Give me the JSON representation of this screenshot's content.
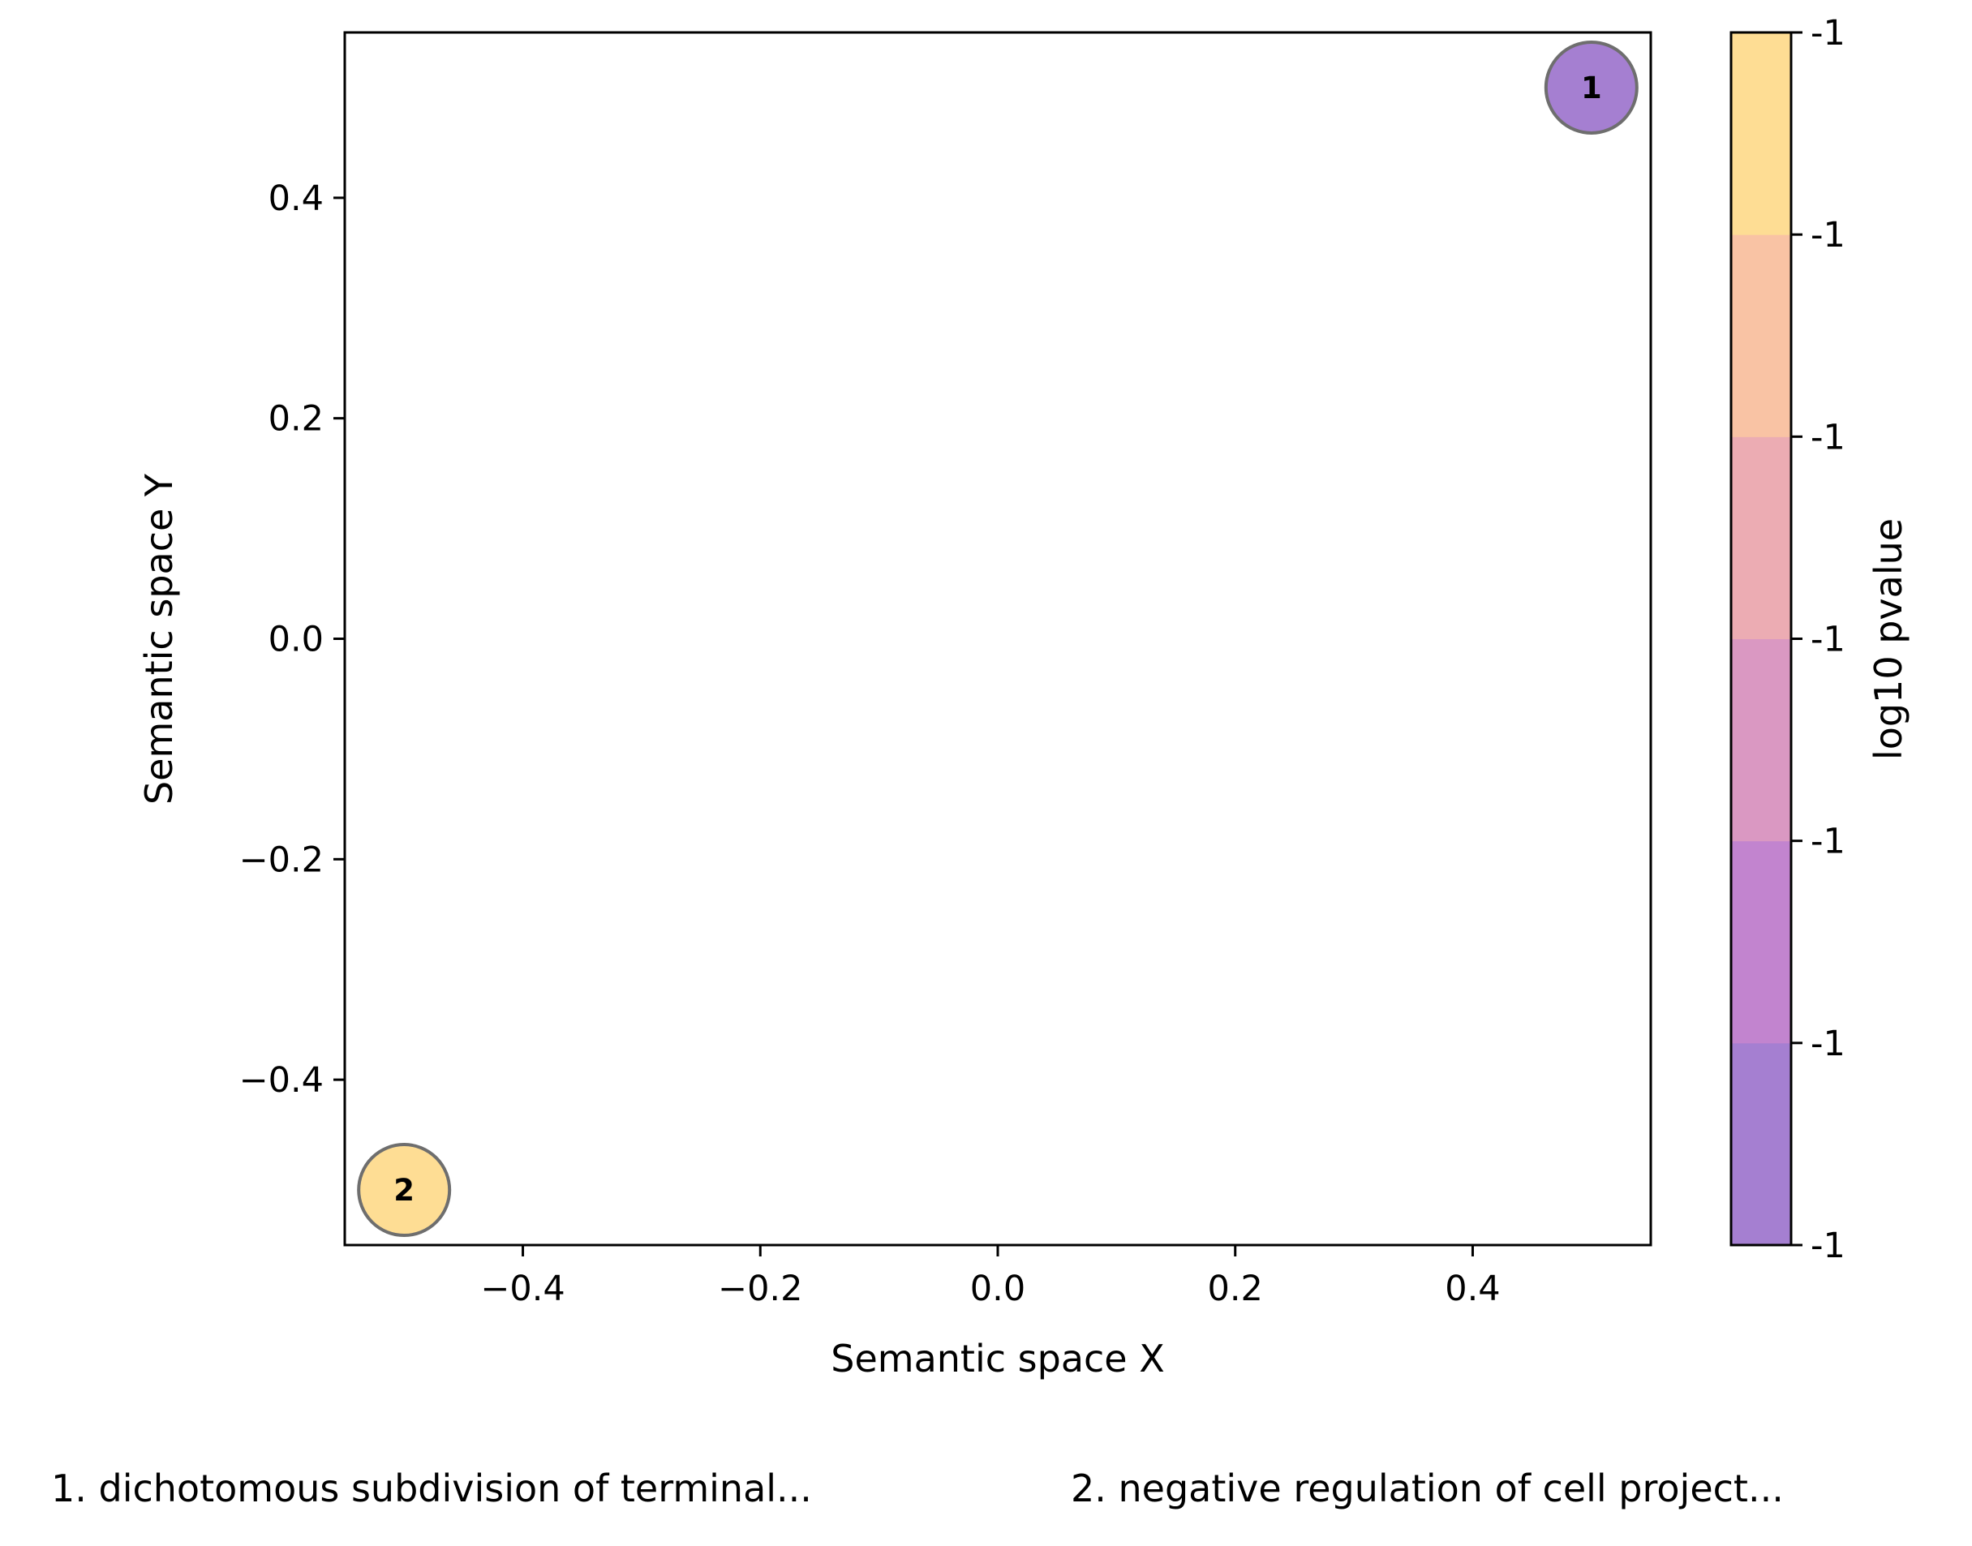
{
  "chart_data": {
    "type": "scatter",
    "title": "",
    "xlabel": "Semantic space X",
    "ylabel": "Semantic space Y",
    "xlim": [
      -0.55,
      0.55
    ],
    "ylim": [
      -0.55,
      0.55
    ],
    "xticks": [
      -0.4,
      -0.2,
      0.0,
      0.2,
      0.4
    ],
    "xtick_labels": [
      "−0.4",
      "−0.2",
      "0.0",
      "0.2",
      "0.4"
    ],
    "yticks": [
      -0.4,
      -0.2,
      0.0,
      0.2,
      0.4
    ],
    "ytick_labels": [
      "−0.4",
      "−0.2",
      "0.0",
      "0.2",
      "0.4"
    ],
    "grid": false,
    "points": [
      {
        "label": "1",
        "x": 0.5,
        "y": 0.5,
        "color": "#a57fd1"
      },
      {
        "label": "2",
        "x": -0.5,
        "y": -0.5,
        "color": "#fedd94"
      }
    ],
    "colorbar": {
      "label": "log10 pvalue",
      "tick_labels": [
        "-1",
        "-1",
        "-1",
        "-1",
        "-1",
        "-1",
        "-1"
      ],
      "colors": [
        "#a57fd1",
        "#c284cf",
        "#da98c2",
        "#ecacb3",
        "#f9c3a4",
        "#fedd94"
      ]
    },
    "footnotes": [
      "1. dichotomous subdivision of terminal...",
      "2. negative regulation of cell project..."
    ]
  }
}
